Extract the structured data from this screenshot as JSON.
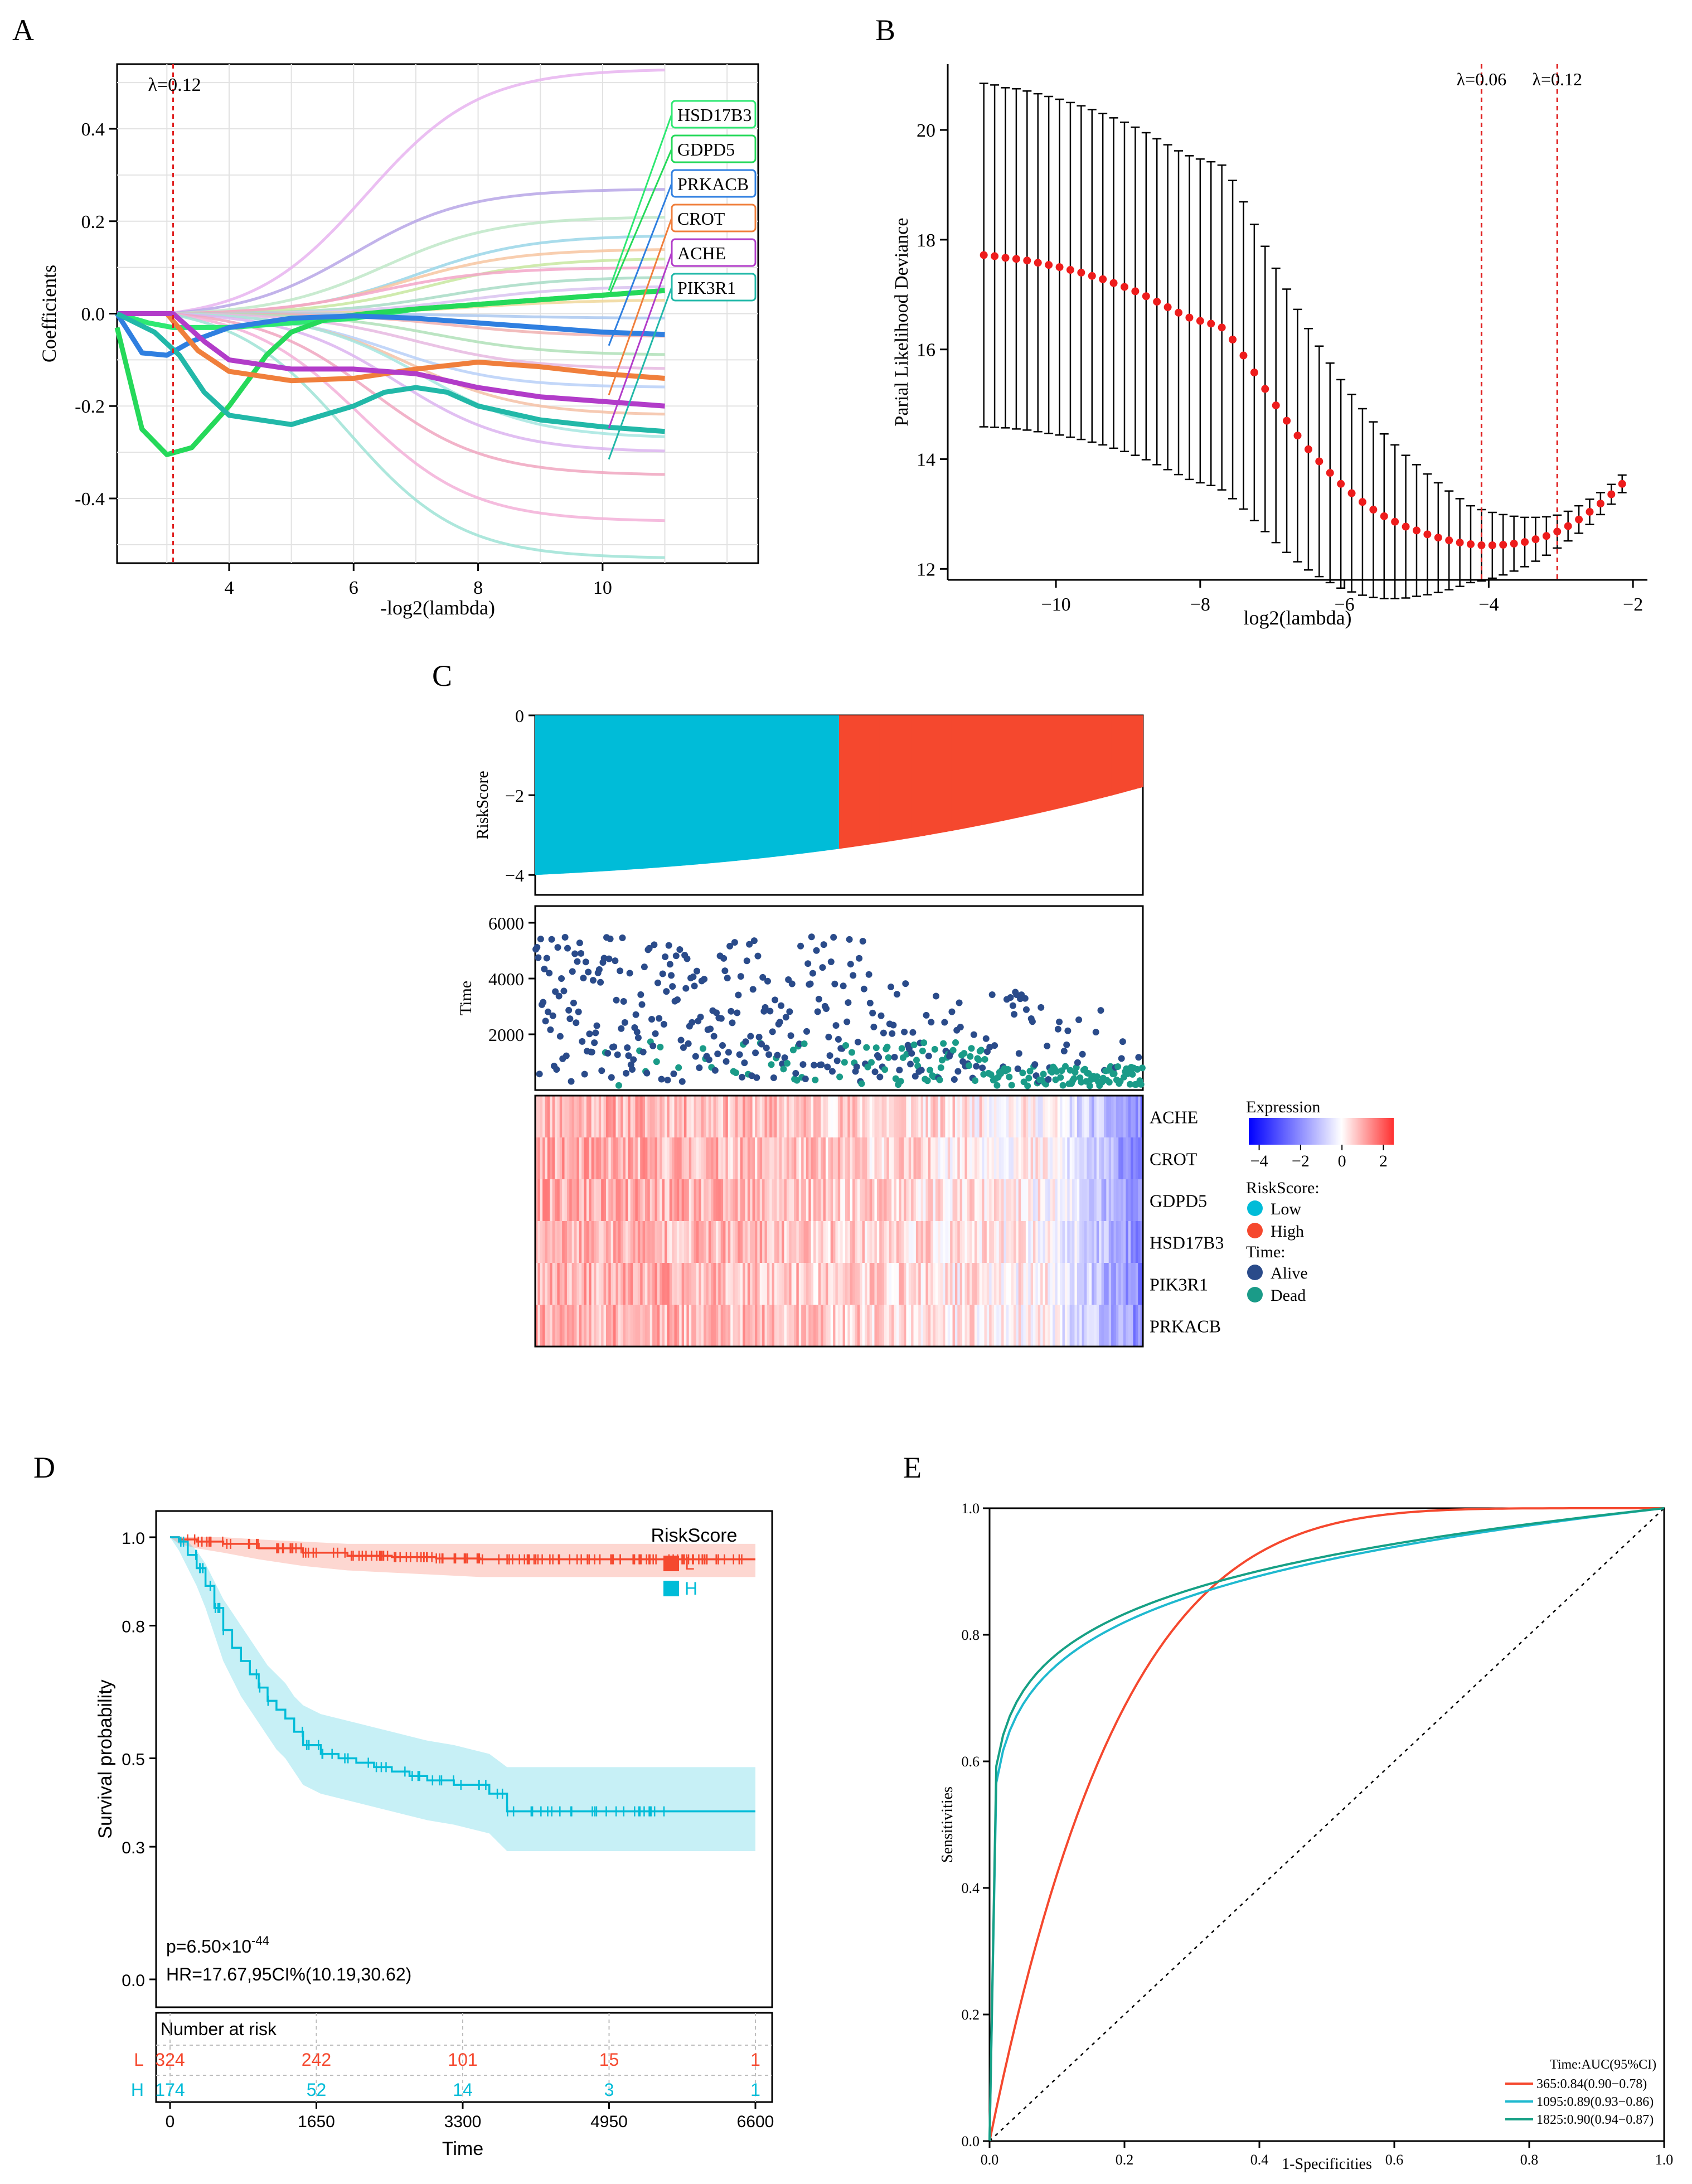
{
  "chart_data": [
    {
      "panel": "A",
      "type": "line",
      "xlabel": "-log2(lambda)",
      "ylabel": "Coefficients",
      "xlim": [
        2.2,
        12.5
      ],
      "ylim": [
        -0.54,
        0.54
      ],
      "xticks": [
        4,
        6,
        8,
        10
      ],
      "yticks": [
        -0.4,
        -0.2,
        0.0,
        0.2,
        0.4
      ],
      "ytick_labels": [
        "-0.4",
        "-0.2",
        "0.0",
        "0.2",
        "0.4"
      ],
      "vline": {
        "x": 3.1,
        "label": "λ=0.12"
      },
      "grid": true,
      "legend": "right, boxed gene labels",
      "highlighted": [
        {
          "name": "HSD17B3",
          "color": "#2ee872",
          "x": [
            2.2,
            2.7,
            3.1,
            4.0,
            5.0,
            6.0,
            7.0,
            8.0,
            9.0,
            10.0,
            11.0
          ],
          "y": [
            0,
            -0.02,
            -0.03,
            -0.03,
            -0.02,
            -0.01,
            0.01,
            0.02,
            0.03,
            0.04,
            0.05
          ]
        },
        {
          "name": "GDPD5",
          "color": "#25d95a",
          "x": [
            2.2,
            2.6,
            3.0,
            3.4,
            4.0,
            4.6,
            5.0,
            5.6,
            6.2,
            7.0,
            8.0,
            9.0,
            10.0,
            11.0
          ],
          "y": [
            -0.03,
            -0.25,
            -0.305,
            -0.29,
            -0.2,
            -0.09,
            -0.04,
            -0.01,
            0.0,
            0.01,
            0.02,
            0.03,
            0.04,
            0.05
          ]
        },
        {
          "name": "PRKACB",
          "color": "#2f7fe0",
          "x": [
            2.2,
            2.6,
            3.0,
            3.4,
            4.0,
            5.0,
            6.0,
            7.0,
            8.0,
            9.0,
            10.0,
            11.0
          ],
          "y": [
            0,
            -0.085,
            -0.09,
            -0.06,
            -0.03,
            -0.01,
            -0.005,
            -0.01,
            -0.02,
            -0.03,
            -0.04,
            -0.045
          ]
        },
        {
          "name": "CROT",
          "color": "#f07f3c",
          "x": [
            2.2,
            3.0,
            3.5,
            4.0,
            5.0,
            6.0,
            7.0,
            8.0,
            9.0,
            10.0,
            11.0
          ],
          "y": [
            0,
            0,
            -0.08,
            -0.125,
            -0.145,
            -0.14,
            -0.12,
            -0.105,
            -0.115,
            -0.13,
            -0.14
          ]
        },
        {
          "name": "ACHE",
          "color": "#b23cc9",
          "x": [
            2.2,
            3.1,
            3.6,
            4.0,
            5.0,
            6.0,
            7.0,
            8.0,
            9.0,
            10.0,
            11.0
          ],
          "y": [
            0,
            0,
            -0.06,
            -0.1,
            -0.12,
            -0.12,
            -0.13,
            -0.16,
            -0.18,
            -0.19,
            -0.2
          ]
        },
        {
          "name": "PIK3R1",
          "color": "#22b8a8",
          "x": [
            2.2,
            2.8,
            3.2,
            3.6,
            4.0,
            5.0,
            6.0,
            6.5,
            7.0,
            7.5,
            8.0,
            9.0,
            10.0,
            11.0
          ],
          "y": [
            0,
            -0.04,
            -0.09,
            -0.17,
            -0.22,
            -0.24,
            -0.2,
            -0.17,
            -0.16,
            -0.17,
            -0.2,
            -0.23,
            -0.245,
            -0.255
          ]
        }
      ],
      "labels": [
        "HSD17B3",
        "GDPD5",
        "PRKACB",
        "CROT",
        "ACHE",
        "PIK3R1"
      ],
      "label_colors": [
        "#2ee872",
        "#25d95a",
        "#2f7fe0",
        "#f07f3c",
        "#b23cc9",
        "#22b8a8"
      ],
      "background_series": [
        {
          "color": "#e8b4f0",
          "y_end": 0.53,
          "s": 6.2
        },
        {
          "color": "#b7a6e6",
          "y_end": 0.27,
          "s": 6.0
        },
        {
          "color": "#bfe8c8",
          "y_end": 0.21,
          "s": 6.5
        },
        {
          "color": "#9ad6e8",
          "y_end": 0.17,
          "s": 7.0
        },
        {
          "color": "#f7c6a1",
          "y_end": 0.14,
          "s": 6.8
        },
        {
          "color": "#c8e8a0",
          "y_end": 0.12,
          "s": 7.2
        },
        {
          "color": "#f3a6c8",
          "y_end": 0.1,
          "s": 6.4
        },
        {
          "color": "#a8dcc6",
          "y_end": 0.08,
          "s": 7.5
        },
        {
          "color": "#d9c3f0",
          "y_end": 0.06,
          "s": 7.8
        },
        {
          "color": "#f0d79a",
          "y_end": 0.03,
          "s": 8.0
        },
        {
          "color": "#aac8f0",
          "y_end": -0.01,
          "s": 8.2
        },
        {
          "color": "#f0b0b0",
          "y_end": -0.05,
          "s": 7.6
        },
        {
          "color": "#b0e0b8",
          "y_end": -0.09,
          "s": 7.3
        },
        {
          "color": "#e6b8e0",
          "y_end": -0.12,
          "s": 7.0
        },
        {
          "color": "#b8d0f8",
          "y_end": -0.16,
          "s": 6.6
        },
        {
          "color": "#f5c1a6",
          "y_end": -0.22,
          "s": 6.9
        },
        {
          "color": "#a6e6e0",
          "y_end": -0.27,
          "s": 7.1
        },
        {
          "color": "#dcb4f0",
          "y_end": -0.3,
          "s": 6.7
        },
        {
          "color": "#f0a6c0",
          "y_end": -0.35,
          "s": 6.3
        },
        {
          "color": "#f3b0d8",
          "y_end": -0.45,
          "s": 6.1
        },
        {
          "color": "#9fe3d6",
          "y_end": -0.53,
          "s": 5.9
        }
      ]
    },
    {
      "panel": "B",
      "type": "scatter",
      "xlabel": "log2(lambda)",
      "ylabel": "Parial Likelihood Deviance",
      "xlim": [
        -11.5,
        -1.8
      ],
      "ylim": [
        11.8,
        21.2
      ],
      "xticks": [
        -10,
        -8,
        -6,
        -4,
        -2
      ],
      "xtick_labels": [
        "−10",
        "−8",
        "−6",
        "−4",
        "−2"
      ],
      "yticks": [
        12,
        14,
        16,
        18,
        20
      ],
      "vlines": [
        {
          "x": -4.1,
          "label": "λ=0.06"
        },
        {
          "x": -3.05,
          "label": "λ=0.12"
        }
      ],
      "points": [
        [
          -11.0,
          17.72,
          3.13
        ],
        [
          -10.85,
          17.7,
          3.12
        ],
        [
          -10.7,
          17.67,
          3.1
        ],
        [
          -10.55,
          17.65,
          3.1
        ],
        [
          -10.4,
          17.62,
          3.09
        ],
        [
          -10.25,
          17.58,
          3.08
        ],
        [
          -10.1,
          17.54,
          3.07
        ],
        [
          -9.95,
          17.5,
          3.06
        ],
        [
          -9.8,
          17.45,
          3.05
        ],
        [
          -9.65,
          17.4,
          3.04
        ],
        [
          -9.5,
          17.34,
          3.03
        ],
        [
          -9.35,
          17.28,
          3.02
        ],
        [
          -9.2,
          17.21,
          3.01
        ],
        [
          -9.05,
          17.14,
          3.0
        ],
        [
          -8.9,
          17.06,
          2.99
        ],
        [
          -8.75,
          16.97,
          2.98
        ],
        [
          -8.6,
          16.87,
          2.97
        ],
        [
          -8.45,
          16.77,
          2.96
        ],
        [
          -8.3,
          16.67,
          2.95
        ],
        [
          -8.15,
          16.58,
          2.95
        ],
        [
          -8.0,
          16.52,
          2.95
        ],
        [
          -7.85,
          16.47,
          2.95
        ],
        [
          -7.7,
          16.4,
          2.96
        ],
        [
          -7.55,
          16.18,
          2.9
        ],
        [
          -7.4,
          15.89,
          2.8
        ],
        [
          -7.25,
          15.58,
          2.7
        ],
        [
          -7.1,
          15.28,
          2.6
        ],
        [
          -6.95,
          14.98,
          2.5
        ],
        [
          -6.8,
          14.7,
          2.4
        ],
        [
          -6.65,
          14.43,
          2.3
        ],
        [
          -6.5,
          14.18,
          2.2
        ],
        [
          -6.35,
          13.96,
          2.1
        ],
        [
          -6.2,
          13.75,
          2.0
        ],
        [
          -6.05,
          13.55,
          1.9
        ],
        [
          -5.9,
          13.38,
          1.8
        ],
        [
          -5.75,
          13.22,
          1.7
        ],
        [
          -5.6,
          13.08,
          1.6
        ],
        [
          -5.45,
          12.96,
          1.5
        ],
        [
          -5.3,
          12.86,
          1.4
        ],
        [
          -5.15,
          12.77,
          1.3
        ],
        [
          -5.0,
          12.7,
          1.2
        ],
        [
          -4.85,
          12.63,
          1.1
        ],
        [
          -4.7,
          12.57,
          1.0
        ],
        [
          -4.55,
          12.52,
          0.9
        ],
        [
          -4.4,
          12.48,
          0.8
        ],
        [
          -4.25,
          12.45,
          0.7
        ],
        [
          -4.1,
          12.43,
          0.65
        ],
        [
          -3.95,
          12.43,
          0.6
        ],
        [
          -3.8,
          12.44,
          0.55
        ],
        [
          -3.65,
          12.46,
          0.5
        ],
        [
          -3.5,
          12.49,
          0.45
        ],
        [
          -3.35,
          12.54,
          0.4
        ],
        [
          -3.2,
          12.6,
          0.35
        ],
        [
          -3.05,
          12.68,
          0.3
        ],
        [
          -2.9,
          12.78,
          0.27
        ],
        [
          -2.75,
          12.9,
          0.25
        ],
        [
          -2.6,
          13.04,
          0.23
        ],
        [
          -2.45,
          13.19,
          0.2
        ],
        [
          -2.3,
          13.36,
          0.18
        ],
        [
          -2.15,
          13.55,
          0.16
        ]
      ],
      "point_format": "[log2(lambda), deviance, half-error]"
    },
    {
      "panel": "C",
      "type": "bar",
      "subplots": {
        "riskscore": {
          "ylabel": "RiskScore",
          "yticks": [
            0,
            -2,
            -4
          ],
          "ytick_labels": [
            "0",
            "−2",
            "−4"
          ],
          "ylim": [
            -4.5,
            0
          ],
          "n_samples": 498,
          "low_count": 249,
          "range": [
            -4.0,
            -1.8
          ],
          "colors": {
            "Low": "#00bcd8",
            "High": "#f5482e"
          }
        },
        "time": {
          "ylabel": "Time",
          "yticks": [
            2000,
            4000,
            6000
          ],
          "ylim": [
            0,
            6600
          ],
          "colors": {
            "Alive": "#2a4b8a",
            "Dead": "#1a9b88"
          }
        },
        "heatmap": {
          "genes": [
            "ACHE",
            "CROT",
            "GDPD5",
            "HSD17B3",
            "PIK3R1",
            "PRKACB"
          ],
          "scale_range": [
            -4.5,
            2.5
          ],
          "scale_ticks": [
            -4,
            -2,
            0,
            2
          ],
          "scale_tick_labels": [
            "−4",
            "−2",
            "0",
            "2"
          ]
        }
      },
      "legend": {
        "expression_title": "Expression",
        "risk_title": "RiskScore:",
        "risk_items": [
          "Low",
          "High"
        ],
        "time_title": "Time:",
        "time_items": [
          "Alive",
          "Dead"
        ]
      }
    },
    {
      "panel": "D",
      "type": "line",
      "xlabel": "Time",
      "ylabel": "Survival probability",
      "xlim": [
        0,
        6600
      ],
      "ylim": [
        0,
        1.0
      ],
      "xticks": [
        0,
        1650,
        3300,
        4950,
        6600
      ],
      "yticks": [
        0.0,
        0.3,
        0.5,
        0.8,
        1.0
      ],
      "ytick_labels": [
        "0.0",
        "0.3",
        "0.5",
        "0.8",
        "1.0"
      ],
      "legend_title": "RiskScore",
      "legend_items": [
        "L",
        "H"
      ],
      "series": [
        {
          "name": "L",
          "color": "#f5482e",
          "time": [
            0,
            100,
            300,
            600,
            1000,
            1500,
            2000,
            2500,
            3000,
            3500,
            4000,
            5000,
            6600
          ],
          "surv": [
            1.0,
            0.995,
            0.99,
            0.985,
            0.975,
            0.965,
            0.958,
            0.955,
            0.952,
            0.95,
            0.95,
            0.95,
            0.95
          ],
          "lower": [
            1.0,
            0.985,
            0.975,
            0.965,
            0.95,
            0.935,
            0.925,
            0.92,
            0.915,
            0.91,
            0.91,
            0.91,
            0.91
          ],
          "upper": [
            1.0,
            1.0,
            1.0,
            1.0,
            0.995,
            0.99,
            0.985,
            0.985,
            0.985,
            0.985,
            0.985,
            0.985,
            0.985
          ]
        },
        {
          "name": "H",
          "color": "#00bcd8",
          "time": [
            0,
            100,
            200,
            300,
            400,
            500,
            600,
            700,
            800,
            900,
            1000,
            1100,
            1200,
            1300,
            1400,
            1500,
            1700,
            1900,
            2100,
            2300,
            2500,
            2700,
            2900,
            3200,
            3600,
            3800,
            6600
          ],
          "surv": [
            1.0,
            0.99,
            0.96,
            0.93,
            0.89,
            0.84,
            0.79,
            0.75,
            0.72,
            0.69,
            0.66,
            0.63,
            0.61,
            0.59,
            0.56,
            0.53,
            0.51,
            0.5,
            0.49,
            0.48,
            0.47,
            0.46,
            0.45,
            0.44,
            0.42,
            0.38,
            0.38
          ],
          "lower": [
            1.0,
            0.97,
            0.93,
            0.89,
            0.84,
            0.78,
            0.72,
            0.68,
            0.64,
            0.61,
            0.58,
            0.55,
            0.52,
            0.5,
            0.47,
            0.44,
            0.42,
            0.41,
            0.4,
            0.39,
            0.38,
            0.37,
            0.36,
            0.35,
            0.33,
            0.29,
            0.29
          ],
          "upper": [
            1.0,
            1.0,
            0.99,
            0.97,
            0.94,
            0.9,
            0.86,
            0.83,
            0.8,
            0.77,
            0.74,
            0.71,
            0.69,
            0.67,
            0.64,
            0.62,
            0.6,
            0.59,
            0.58,
            0.57,
            0.56,
            0.55,
            0.54,
            0.53,
            0.51,
            0.48,
            0.48
          ]
        }
      ],
      "p_value": {
        "prefix": "p=6.50×10",
        "exponent": "-44"
      },
      "hr_text": "HR=17.67,95CI%(10.19,30.62)",
      "risk_table": {
        "title": "Number at risk",
        "rows": [
          {
            "name": "L",
            "color": "#f5482e",
            "counts": [
              "324",
              "242",
              "101",
              "15",
              "1"
            ]
          },
          {
            "name": "H",
            "color": "#00bcd8",
            "counts": [
              "174",
              "52",
              "14",
              "3",
              "1"
            ]
          }
        ]
      }
    },
    {
      "panel": "E",
      "type": "line",
      "xlabel": "1-Specificities",
      "ylabel": "Sensitivities",
      "xlim": [
        0,
        1
      ],
      "ylim": [
        0,
        1
      ],
      "xticks": [
        0.0,
        0.2,
        0.4,
        0.6,
        0.8,
        1.0
      ],
      "yticks": [
        0.0,
        0.2,
        0.4,
        0.6,
        0.8,
        1.0
      ],
      "tick_labels": [
        "0.0",
        "0.2",
        "0.4",
        "0.6",
        "0.8",
        "1.0"
      ],
      "legend_title": "Time:AUC(95%CI)",
      "series": [
        {
          "name": "365:0.84(0.90−0.78)",
          "color": "#f5482e",
          "auc": 0.84
        },
        {
          "name": "1095:0.89(0.93−0.86)",
          "color": "#1fb9cf",
          "auc": 0.89
        },
        {
          "name": "1825:0.90(0.94−0.87)",
          "color": "#16a085",
          "auc": 0.9
        }
      ]
    }
  ],
  "panel_letters": [
    "A",
    "B",
    "C",
    "D",
    "E"
  ]
}
